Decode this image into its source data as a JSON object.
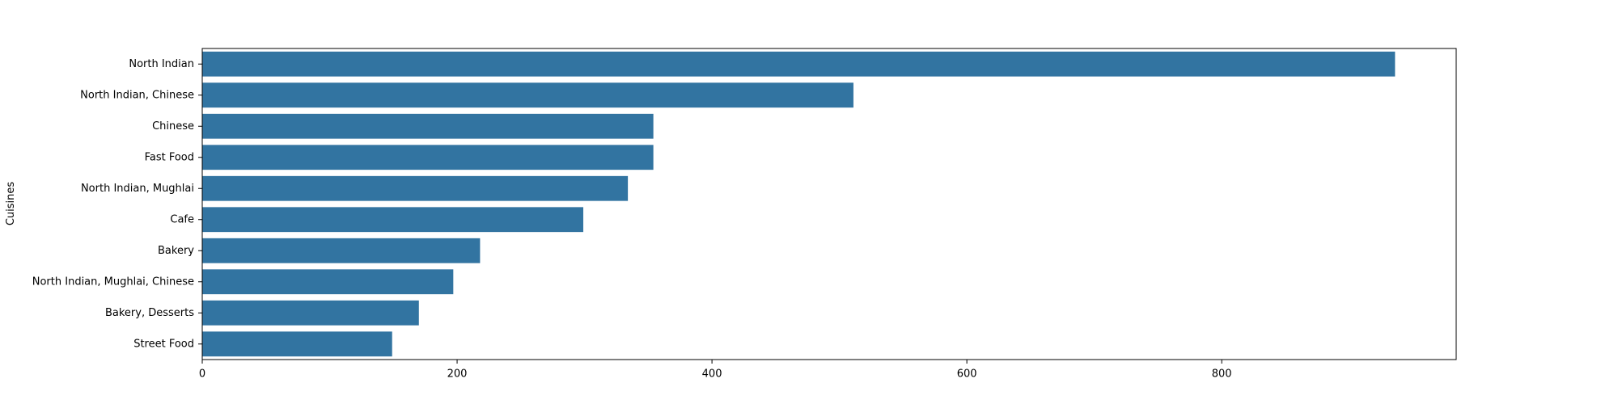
{
  "chart_data": {
    "type": "bar",
    "orientation": "horizontal",
    "title": "",
    "xlabel": "",
    "ylabel": "Cuisines",
    "categories": [
      "North Indian",
      "North Indian, Chinese",
      "Chinese",
      "Fast Food",
      "North Indian, Mughlai",
      "Cafe",
      "Bakery",
      "North Indian, Mughlai, Chinese",
      "Bakery, Desserts",
      "Street Food"
    ],
    "values": [
      936,
      511,
      354,
      354,
      334,
      299,
      218,
      197,
      170,
      149
    ],
    "xlim": [
      0,
      984
    ],
    "xticks": [
      0,
      200,
      400,
      600,
      800
    ],
    "grid": false,
    "bar_color": "#3274a1"
  }
}
